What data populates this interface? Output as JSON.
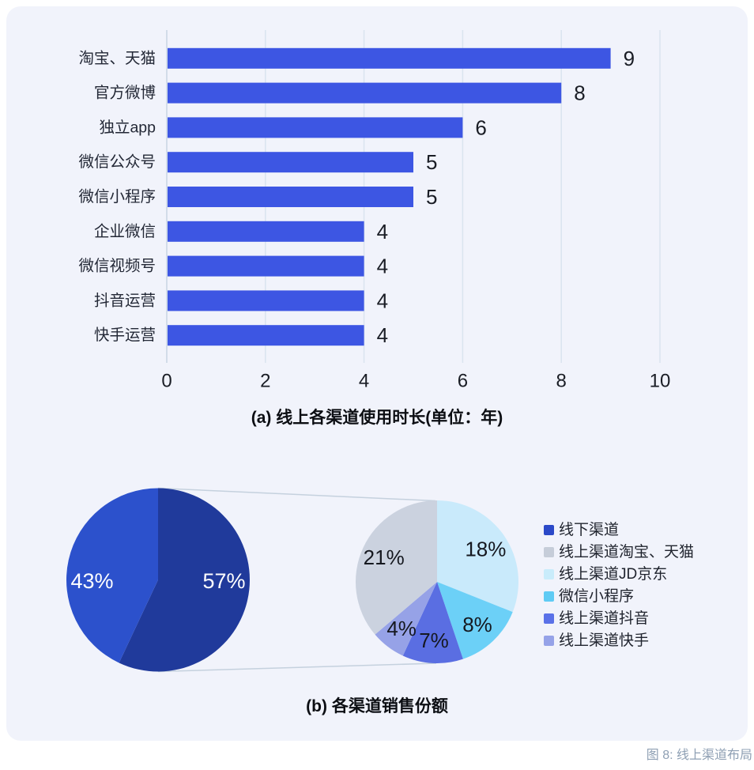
{
  "page": {
    "figure_caption": "图 8: 线上渠道布局"
  },
  "chart_data": [
    {
      "type": "bar",
      "orientation": "horizontal",
      "title": "(a) 线上各渠道使用时长(单位：年)",
      "categories": [
        "淘宝、天猫",
        "官方微博",
        "独立app",
        "微信公众号",
        "微信小程序",
        "企业微信",
        "微信视频号",
        "抖音运营",
        "快手运营"
      ],
      "values": [
        9,
        8,
        6,
        5,
        5,
        4,
        4,
        4,
        4
      ],
      "xlim": [
        0,
        10
      ],
      "xticks": [
        0,
        2,
        4,
        6,
        8,
        10
      ],
      "grid": true,
      "value_labels": true,
      "bar_color": "#3d56e3"
    },
    {
      "type": "pie-of-pie",
      "title": "(b) 各渠道销售份额",
      "main_pie": {
        "slices": [
          {
            "value": 57,
            "label_text": "57%",
            "color": "#203a9b"
          },
          {
            "value": 43,
            "label_text": "43%",
            "color": "#2c51cc"
          }
        ]
      },
      "breakdown_pie": {
        "slices": [
          {
            "value": 18,
            "label_text": "18%",
            "color": "#c9eafb"
          },
          {
            "value": 8,
            "label_text": "8%",
            "color": "#6cd0f7"
          },
          {
            "value": 7,
            "label_text": "7%",
            "color": "#5a6ee2"
          },
          {
            "value": 4,
            "label_text": "4%",
            "color": "#96a2e7"
          },
          {
            "value": 21,
            "label_text": "21%",
            "color": "#cbd2df"
          }
        ]
      },
      "legend": [
        {
          "label": "线下渠道",
          "color": "#2b49c8"
        },
        {
          "label": "线上渠道淘宝、天猫",
          "color": "#c6cdd9"
        },
        {
          "label": "线上渠道JD京东",
          "color": "#c9ecfb"
        },
        {
          "label": "微信小程序",
          "color": "#5fcbf4"
        },
        {
          "label": "线上渠道抖音",
          "color": "#5a71e8"
        },
        {
          "label": "线上渠道快手",
          "color": "#95a2e8"
        }
      ],
      "legend_position": "right"
    }
  ]
}
